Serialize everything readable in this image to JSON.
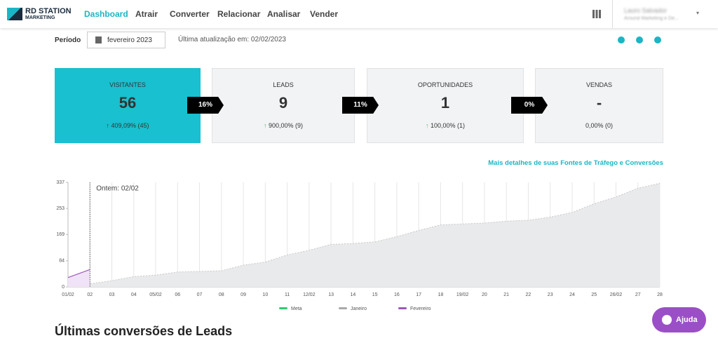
{
  "nav": {
    "logo_top": "RD STATION",
    "logo_bottom": "MARKETING",
    "items": [
      "Dashboard",
      "Atrair",
      "Converter",
      "Relacionar",
      "Analisar",
      "Vender"
    ],
    "user_name": "Lauro Salvador",
    "user_company": "Around Marketing e De..."
  },
  "filter": {
    "label": "Período",
    "period": "fevereiro 2023",
    "updated": "Última atualização em: 02/02/2023"
  },
  "funnel": {
    "cards": [
      {
        "title": "VISITANTES",
        "value": "56",
        "change": "409,09% (45)"
      },
      {
        "title": "LEADS",
        "value": "9",
        "change": "900,00% (9)"
      },
      {
        "title": "OPORTUNIDADES",
        "value": "1",
        "change": "100,00% (1)"
      },
      {
        "title": "VENDAS",
        "value": "-",
        "change": "0,00% (0)"
      }
    ],
    "rates": [
      "16%",
      "11%",
      "0%"
    ]
  },
  "details_link": "Mais detalhes de suas Fontes de Tráfego e Conversões",
  "chart_data": {
    "type": "line",
    "annotation": "Ontem: 02/02",
    "categories": [
      "01/02",
      "02",
      "03",
      "04",
      "05/02",
      "06",
      "07",
      "08",
      "09",
      "10",
      "11",
      "12/02",
      "13",
      "14",
      "15",
      "16",
      "17",
      "18",
      "19/02",
      "20",
      "21",
      "22",
      "23",
      "24",
      "25",
      "26/02",
      "27",
      "28"
    ],
    "series": [
      {
        "name": "Meta",
        "color": "#2ecc71",
        "values": [
          null,
          null,
          null,
          null,
          null,
          null,
          null,
          null,
          null,
          null,
          null,
          null,
          null,
          null,
          null,
          null,
          null,
          null,
          null,
          null,
          null,
          null,
          null,
          null,
          null,
          null,
          null,
          null
        ]
      },
      {
        "name": "Janeiro",
        "color": "#a9a9a9",
        "values": [
          5,
          10,
          20,
          33,
          38,
          48,
          50,
          52,
          70,
          80,
          103,
          118,
          137,
          140,
          145,
          162,
          182,
          200,
          203,
          206,
          212,
          215,
          225,
          240,
          268,
          290,
          318,
          334
        ]
      },
      {
        "name": "Fevereiro",
        "color": "#9b59b6",
        "values": [
          30,
          56,
          null,
          null,
          null,
          null,
          null,
          null,
          null,
          null,
          null,
          null,
          null,
          null,
          null,
          null,
          null,
          null,
          null,
          null,
          null,
          null,
          null,
          null,
          null,
          null,
          null,
          null
        ]
      }
    ],
    "ylim": [
      0,
      337
    ],
    "yticks": [
      0,
      84,
      169,
      253,
      337
    ]
  },
  "section_title": "Últimas conversões de Leads",
  "help_button": "Ajuda"
}
